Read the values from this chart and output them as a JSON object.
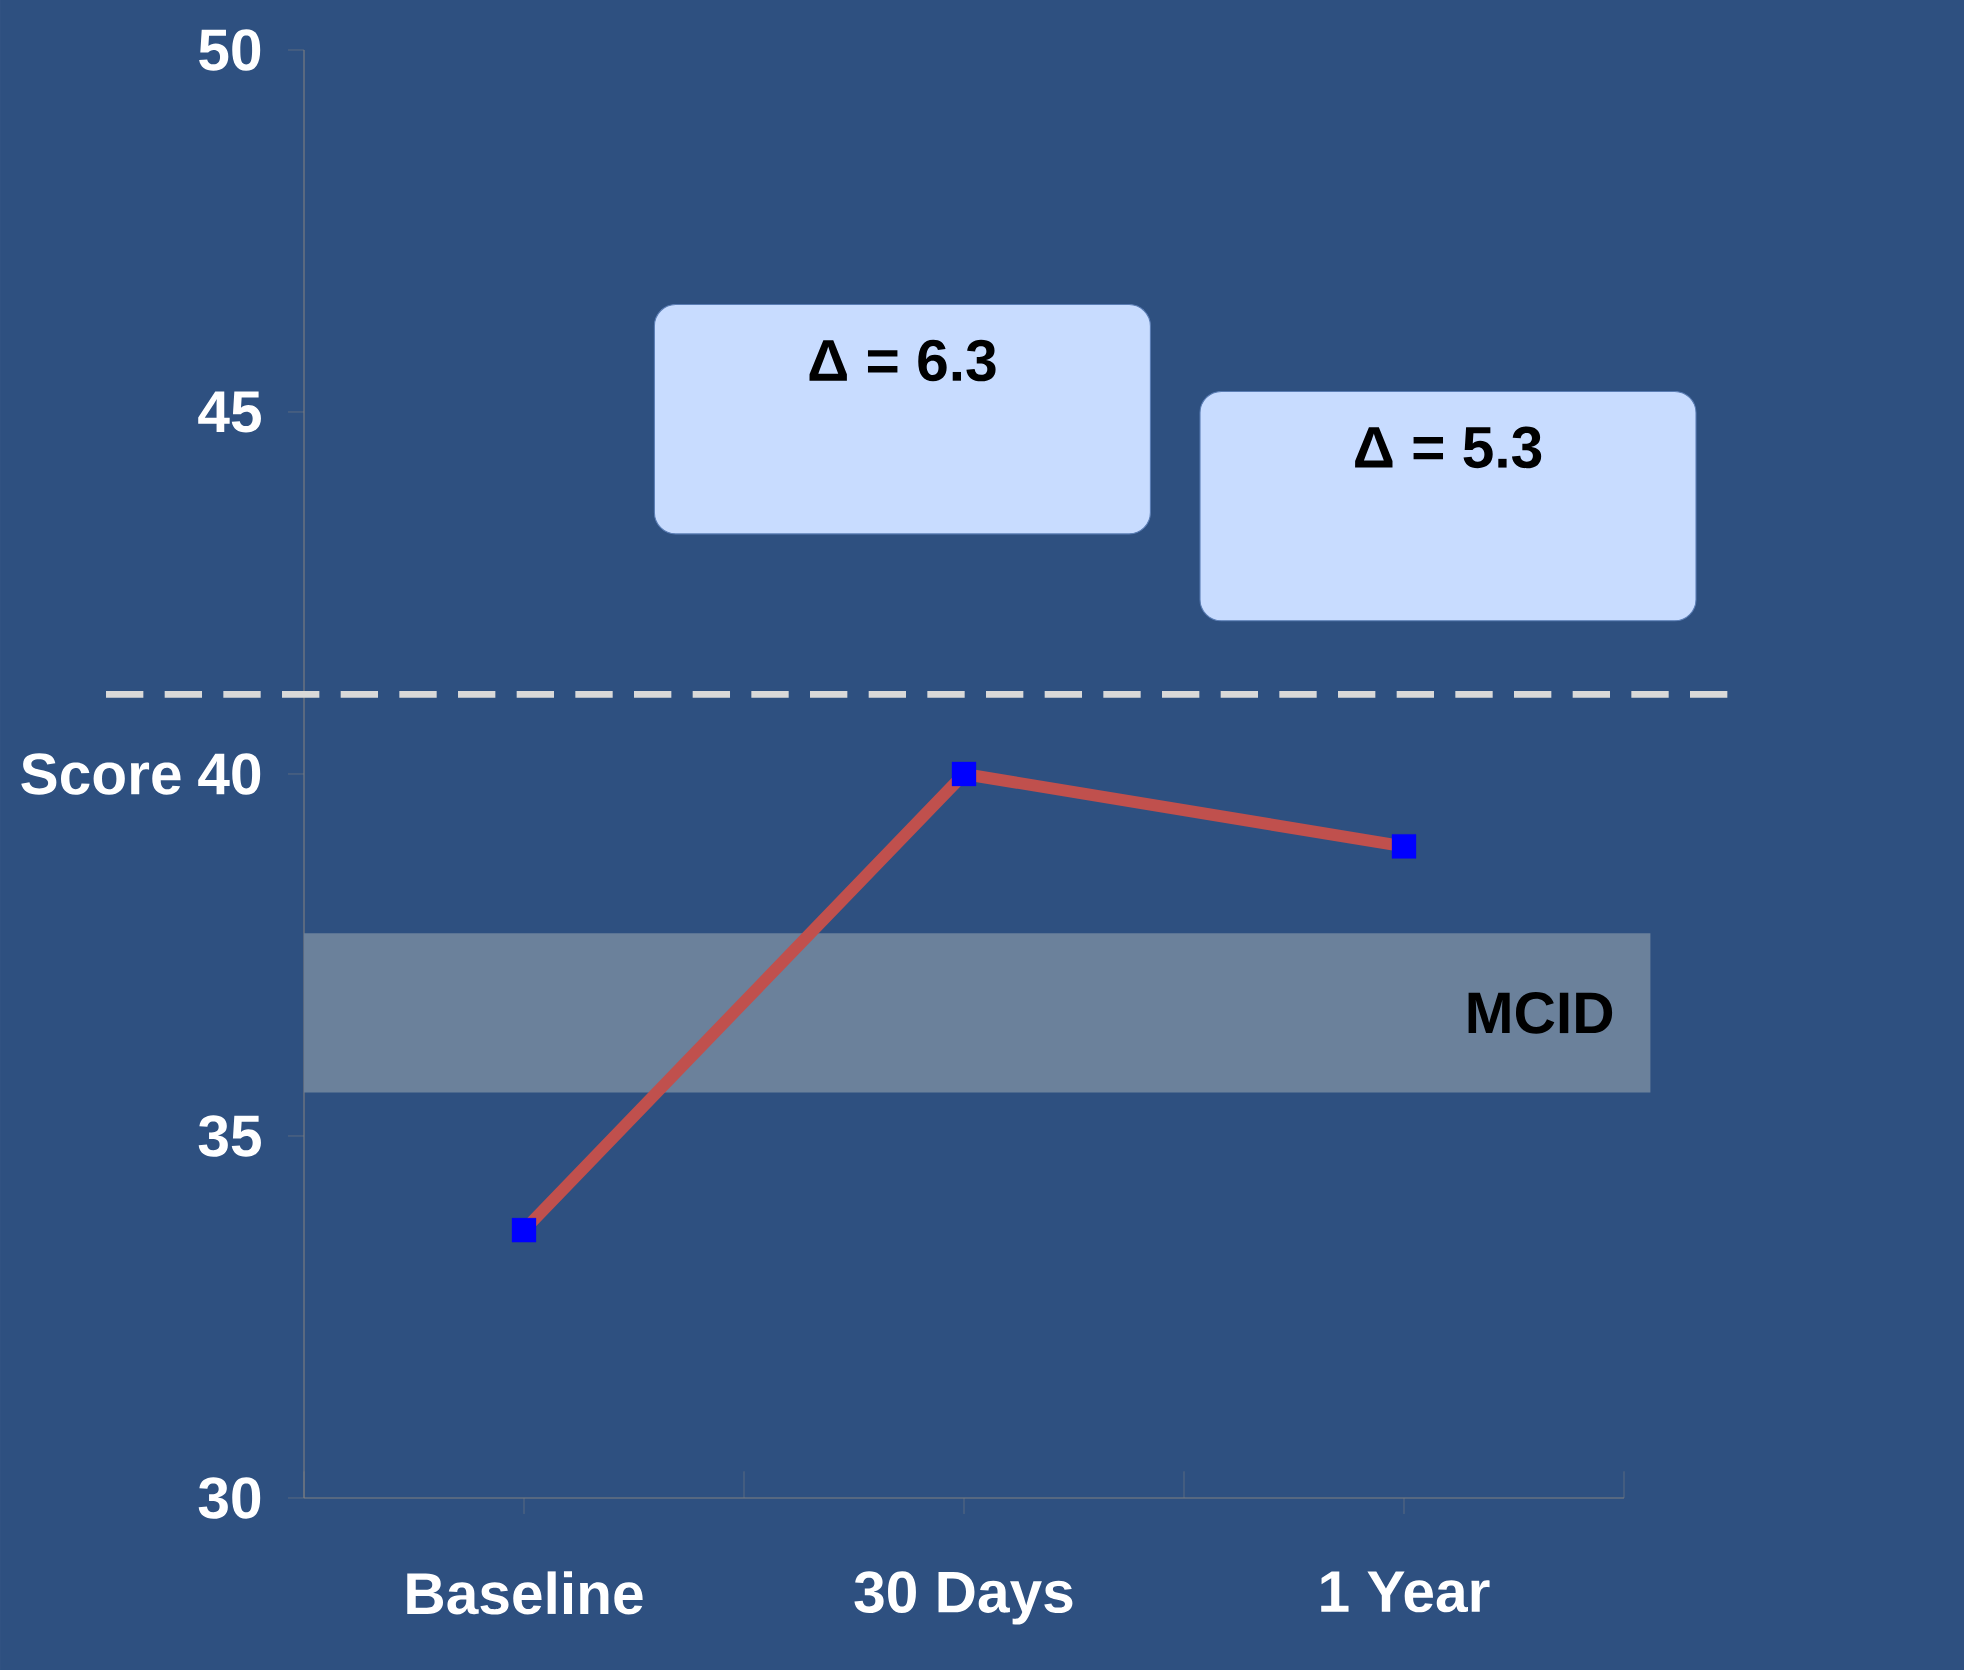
{
  "chart_data": {
    "type": "line",
    "ylabel": "Score",
    "categories": [
      "Baseline",
      "30 Days",
      "1 Year"
    ],
    "series": [
      {
        "color": "#c0504d",
        "values": [
          33.7,
          40.0,
          39.0
        ]
      }
    ],
    "ylim": [
      30,
      50
    ],
    "yticks": [
      30,
      35,
      40,
      45,
      50
    ],
    "marker": "square",
    "line_style": "solid",
    "grid": false,
    "ref_lines": [
      {
        "axis": "y",
        "value": 41.1,
        "color": "#d9d9d9",
        "line_style": "dashed"
      }
    ],
    "bands": [
      {
        "axis": "y",
        "from": 35.6,
        "to": 37.8,
        "label": "MCID",
        "color": "#6b819b"
      }
    ],
    "annotations": [
      "Δ = 6.3",
      "Δ = 5.3"
    ]
  }
}
